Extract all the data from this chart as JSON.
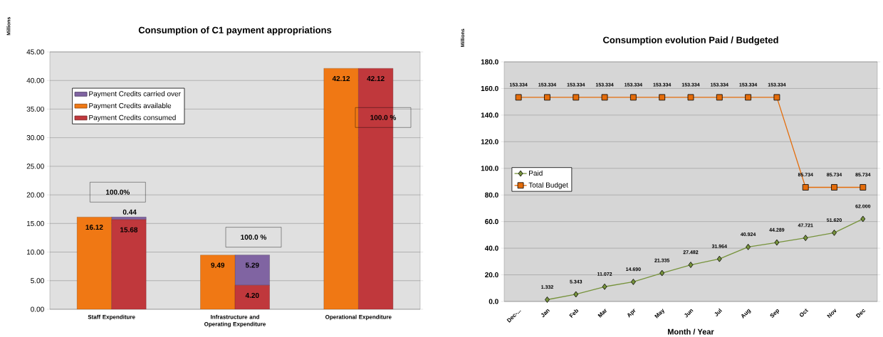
{
  "chart_data": [
    {
      "type": "bar",
      "title": "Consumption of C1 payment appropriations",
      "ylabel": "Millions",
      "categories": [
        "Staff Expenditure",
        "Infrastructure and Operating Expenditure",
        "Operational Expenditure"
      ],
      "series": [
        {
          "name": "Payment Credits carried over",
          "color": "#8064a2",
          "values": [
            0.44,
            5.29,
            null
          ],
          "base": [
            15.68,
            4.2,
            null
          ],
          "value_labels": [
            "0.44",
            "5.29",
            null
          ]
        },
        {
          "name": "Payment Credits available",
          "color": "#f07814",
          "values": [
            16.12,
            9.49,
            42.12
          ],
          "value_labels": [
            "16.12",
            "9.49",
            "42.12"
          ]
        },
        {
          "name": "Payment Credits consumed",
          "color": "#c0383c",
          "values": [
            15.68,
            4.2,
            42.12
          ],
          "value_labels": [
            "15.68",
            "4.20",
            "42.12"
          ]
        }
      ],
      "ylim": [
        0,
        45
      ],
      "yticks": [
        {
          "value": 0,
          "label": "0.00"
        },
        {
          "value": 5,
          "label": "5.00"
        },
        {
          "value": 10,
          "label": "10.00"
        },
        {
          "value": 15,
          "label": "15.00"
        },
        {
          "value": 20,
          "label": "20.00"
        },
        {
          "value": 25,
          "label": "25.00"
        },
        {
          "value": 30,
          "label": "30.00"
        },
        {
          "value": 35,
          "label": "35.00"
        },
        {
          "value": 40,
          "label": "40.00"
        },
        {
          "value": 45,
          "label": "45.00"
        }
      ],
      "annotations": [
        "100.0%",
        "100.0 %",
        "100.0 %"
      ],
      "grid": "y",
      "legend": "top left"
    },
    {
      "type": "line",
      "title": "Consumption evolution Paid / Budgeted",
      "ylabel": "Millions",
      "xlabel": "Month / Year",
      "categories": [
        "Dec-...",
        "Jan",
        "Feb",
        "Mar",
        "Apr",
        "May",
        "Jun",
        "Jul",
        "Aug",
        "Sep",
        "Oct",
        "Nov",
        "Dec"
      ],
      "series": [
        {
          "name": "Paid",
          "color": "#77933c",
          "marker": "diamond",
          "values": [
            null,
            1.332,
            5.343,
            11.072,
            14.69,
            21.335,
            27.482,
            31.964,
            40.924,
            44.289,
            47.721,
            51.62,
            62.0
          ],
          "value_labels": [
            null,
            "1.332",
            "5.343",
            "11.072",
            "14.690",
            "21.335",
            "27.482",
            "31.964",
            "40.924",
            "44.289",
            "47.721",
            "51.620",
            "62.000"
          ]
        },
        {
          "name": "Total Budget",
          "color": "#e46c0a",
          "marker": "square",
          "values": [
            153.334,
            153.334,
            153.334,
            153.334,
            153.334,
            153.334,
            153.334,
            153.334,
            153.334,
            153.334,
            85.734,
            85.734,
            85.734
          ],
          "value_labels": [
            "153.334",
            "153.334",
            "153.334",
            "153.334",
            "153.334",
            "153.334",
            "153.334",
            "153.334",
            "153.334",
            "153.334",
            "85.734",
            "85.734",
            "85.734"
          ]
        }
      ],
      "ylim": [
        0,
        180
      ],
      "yticks": [
        {
          "value": 0,
          "label": "0.0"
        },
        {
          "value": 20,
          "label": "20.0"
        },
        {
          "value": 40,
          "label": "40.0"
        },
        {
          "value": 60,
          "label": "60.0"
        },
        {
          "value": 80,
          "label": "80.0"
        },
        {
          "value": 100,
          "label": "100.0"
        },
        {
          "value": 120,
          "label": "120.0"
        },
        {
          "value": 140,
          "label": "140.0"
        },
        {
          "value": 160,
          "label": "160.0"
        },
        {
          "value": 180,
          "label": "180.0"
        }
      ],
      "grid": "y",
      "legend": "left"
    }
  ]
}
